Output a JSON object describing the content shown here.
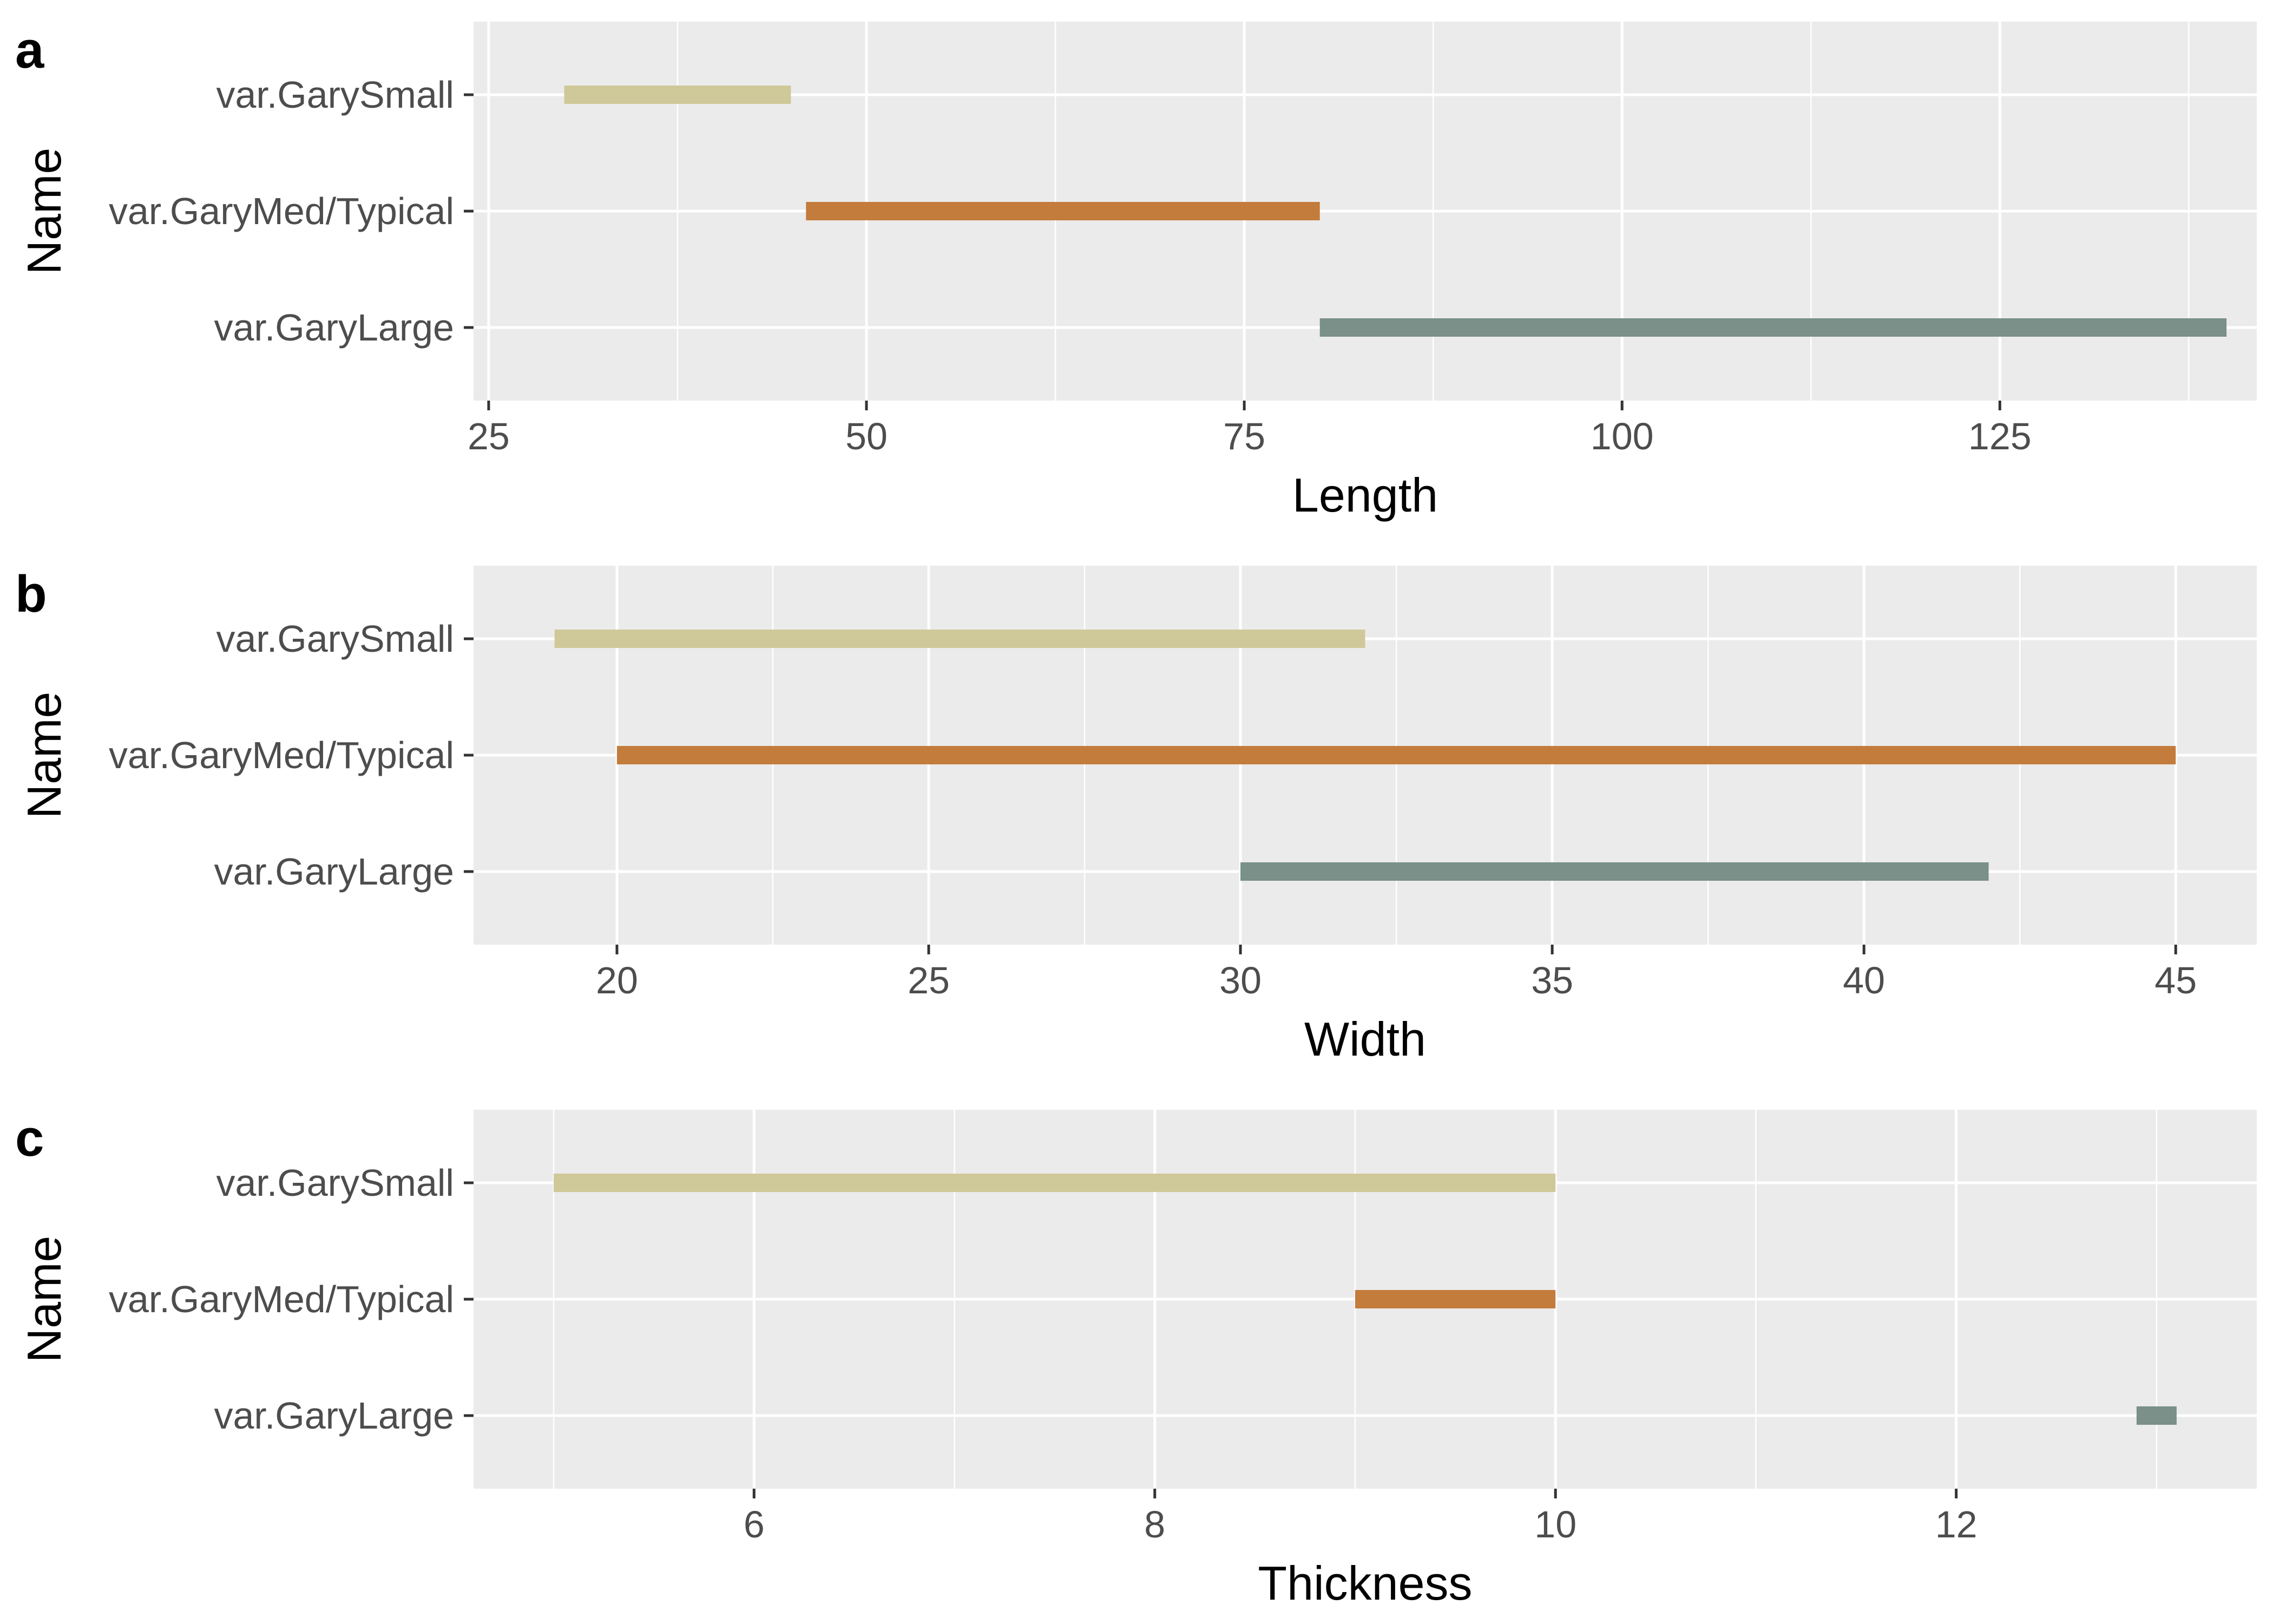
{
  "chart_data": [
    {
      "type": "bar",
      "panel_label": "a",
      "categories": [
        "var.GarySmall",
        "var.GaryMed/Typical",
        "var.GaryLarge"
      ],
      "ranges": [
        [
          30,
          45
        ],
        [
          46,
          80
        ],
        [
          80,
          140
        ]
      ],
      "xlabel": "Length",
      "ylabel": "Name",
      "xlim": [
        24,
        142
      ],
      "xticks": [
        25,
        50,
        75,
        100,
        125
      ],
      "xtick_labels": [
        "25",
        "50",
        "75",
        "100",
        "125"
      ],
      "grid": true
    },
    {
      "type": "bar",
      "panel_label": "b",
      "categories": [
        "var.GarySmall",
        "var.GaryMed/Typical",
        "var.GaryLarge"
      ],
      "ranges": [
        [
          19,
          32
        ],
        [
          20,
          45
        ],
        [
          30,
          42
        ]
      ],
      "xlabel": "Width",
      "ylabel": "Name",
      "xlim": [
        17.7,
        46.3
      ],
      "xticks": [
        20,
        25,
        30,
        35,
        40,
        45
      ],
      "xtick_labels": [
        "20",
        "25",
        "30",
        "35",
        "40",
        "45"
      ],
      "grid": true
    },
    {
      "type": "bar",
      "panel_label": "c",
      "categories": [
        "var.GarySmall",
        "var.GaryMed/Typical",
        "var.GaryLarge"
      ],
      "ranges": [
        [
          5,
          10
        ],
        [
          9,
          10
        ],
        [
          12.9,
          13.1
        ]
      ],
      "xlabel": "Thickness",
      "ylabel": "Name",
      "xlim": [
        4.6,
        13.5
      ],
      "xticks": [
        6,
        8,
        10,
        12
      ],
      "xtick_labels": [
        "6",
        "8",
        "10",
        "12"
      ],
      "grid": true
    }
  ],
  "colors": {
    "var.GarySmall": "#CFC898",
    "var.GaryMed/Typical": "#C37C3C",
    "var.GaryLarge": "#7A9088",
    "panel_background": "#EBEBEB",
    "grid": "#FFFFFF",
    "tick_text": "#4D4D4D",
    "tick_mark": "#333333"
  }
}
